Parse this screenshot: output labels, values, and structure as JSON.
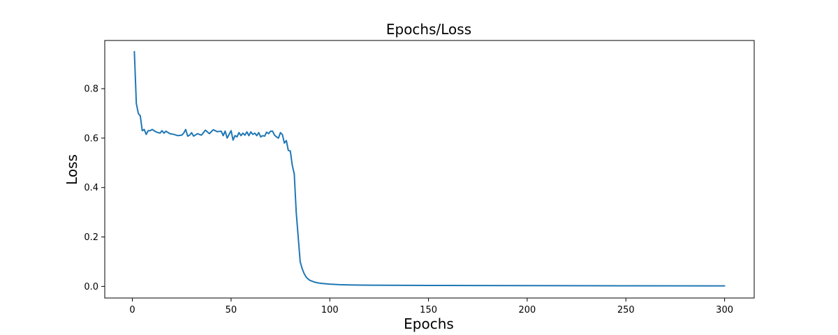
{
  "chart_data": {
    "type": "line",
    "title": "Epochs/Loss",
    "xlabel": "Epochs",
    "ylabel": "Loss",
    "xlim": [
      -14,
      315
    ],
    "ylim": [
      -0.047,
      0.995
    ],
    "xticks": [
      0,
      50,
      100,
      150,
      200,
      250,
      300
    ],
    "yticks": [
      0.0,
      0.2,
      0.4,
      0.6,
      0.8
    ],
    "ytick_labels": [
      "0.0",
      "0.2",
      "0.4",
      "0.6",
      "0.8"
    ],
    "grid": false,
    "series": [
      {
        "color": "#1f77b4",
        "points": [
          [
            1,
            0.95
          ],
          [
            2,
            0.74
          ],
          [
            3,
            0.7
          ],
          [
            4,
            0.69
          ],
          [
            5,
            0.63
          ],
          [
            6,
            0.635
          ],
          [
            7,
            0.615
          ],
          [
            8,
            0.63
          ],
          [
            9,
            0.63
          ],
          [
            10,
            0.635
          ],
          [
            12,
            0.625
          ],
          [
            14,
            0.62
          ],
          [
            15,
            0.63
          ],
          [
            16,
            0.62
          ],
          [
            17,
            0.628
          ],
          [
            19,
            0.618
          ],
          [
            21,
            0.615
          ],
          [
            23,
            0.61
          ],
          [
            25,
            0.612
          ],
          [
            26,
            0.62
          ],
          [
            27,
            0.635
          ],
          [
            28,
            0.608
          ],
          [
            29,
            0.612
          ],
          [
            30,
            0.622
          ],
          [
            31,
            0.608
          ],
          [
            33,
            0.618
          ],
          [
            35,
            0.612
          ],
          [
            37,
            0.632
          ],
          [
            39,
            0.618
          ],
          [
            41,
            0.634
          ],
          [
            43,
            0.626
          ],
          [
            45,
            0.628
          ],
          [
            46,
            0.61
          ],
          [
            47,
            0.628
          ],
          [
            48,
            0.6
          ],
          [
            49,
            0.615
          ],
          [
            50,
            0.63
          ],
          [
            51,
            0.592
          ],
          [
            52,
            0.61
          ],
          [
            53,
            0.605
          ],
          [
            54,
            0.622
          ],
          [
            55,
            0.61
          ],
          [
            56,
            0.62
          ],
          [
            57,
            0.612
          ],
          [
            58,
            0.625
          ],
          [
            59,
            0.61
          ],
          [
            60,
            0.625
          ],
          [
            61,
            0.615
          ],
          [
            62,
            0.62
          ],
          [
            63,
            0.61
          ],
          [
            64,
            0.622
          ],
          [
            65,
            0.605
          ],
          [
            66,
            0.61
          ],
          [
            67,
            0.608
          ],
          [
            68,
            0.624
          ],
          [
            69,
            0.618
          ],
          [
            70,
            0.628
          ],
          [
            71,
            0.628
          ],
          [
            72,
            0.612
          ],
          [
            73,
            0.605
          ],
          [
            74,
            0.6
          ],
          [
            75,
            0.622
          ],
          [
            76,
            0.614
          ],
          [
            77,
            0.58
          ],
          [
            78,
            0.59
          ],
          [
            79,
            0.55
          ],
          [
            80,
            0.548
          ],
          [
            81,
            0.49
          ],
          [
            82,
            0.455
          ],
          [
            83,
            0.3
          ],
          [
            84,
            0.2
          ],
          [
            85,
            0.1
          ],
          [
            86,
            0.072
          ],
          [
            87,
            0.052
          ],
          [
            88,
            0.038
          ],
          [
            89,
            0.03
          ],
          [
            90,
            0.024
          ],
          [
            92,
            0.018
          ],
          [
            94,
            0.014
          ],
          [
            96,
            0.012
          ],
          [
            100,
            0.009
          ],
          [
            105,
            0.007
          ],
          [
            110,
            0.006
          ],
          [
            120,
            0.005
          ],
          [
            130,
            0.0045
          ],
          [
            150,
            0.004
          ],
          [
            175,
            0.0035
          ],
          [
            200,
            0.003
          ],
          [
            250,
            0.0025
          ],
          [
            300,
            0.002
          ]
        ]
      }
    ]
  }
}
